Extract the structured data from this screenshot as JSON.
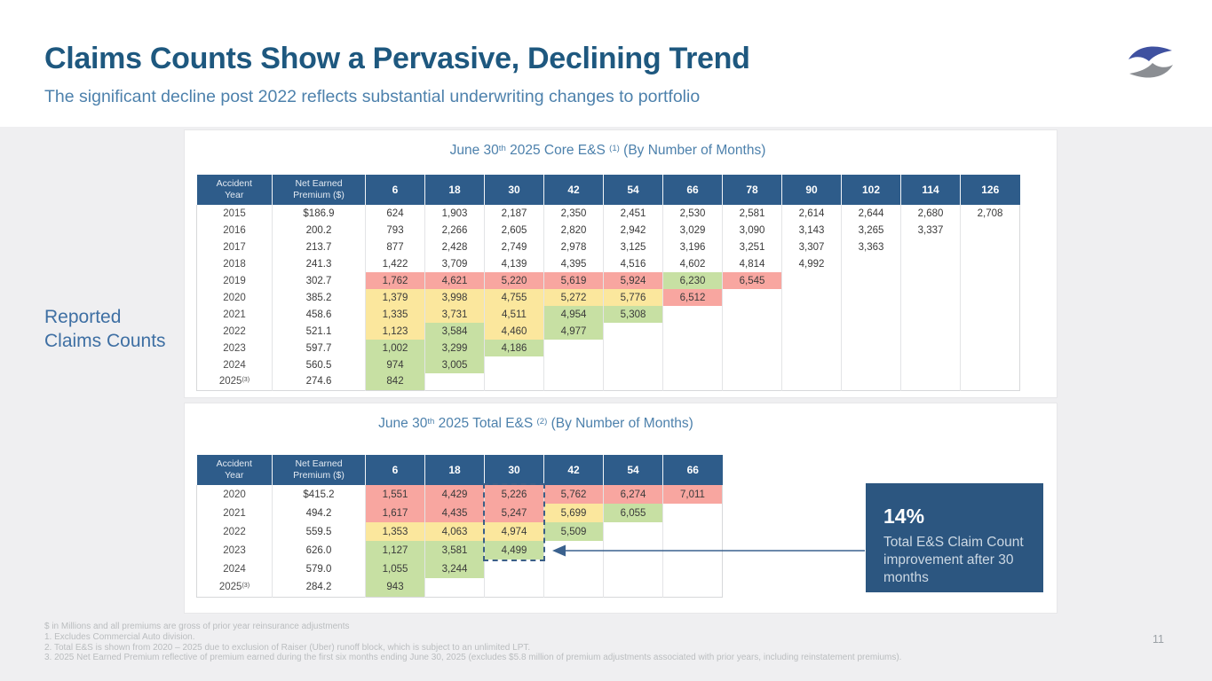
{
  "slide": {
    "title": "Claims Counts Show a Pervasive, Declining Trend",
    "subtitle": "The significant decline post 2022 reflects substantial underwriting changes to portfolio",
    "side_label_line1": "Reported",
    "side_label_line2": "Claims Counts",
    "page_number": "11"
  },
  "colors": {
    "header_navy": "#2e5c8a",
    "highlight_red": "#f8a6a0",
    "highlight_yellow": "#fbe79d",
    "highlight_green": "#c7e0a3",
    "callout_navy": "#2c5680",
    "title_blue": "#1e587f",
    "subtitle_blue": "#4d81ac",
    "logo_blue": "#3f51a0",
    "logo_gray": "#8b8e93"
  },
  "tables": [
    {
      "id": "table1",
      "title_id": "t1-title",
      "title": {
        "pre": "June 30",
        "sup1": "th",
        "mid": " 2025 Core E&S ",
        "sup2": "(1)",
        "post": " (By Number of Months)"
      },
      "header": {
        "col1": "Accident\nYear",
        "col2": "Net Earned\nPremium ($)"
      },
      "months": [
        "6",
        "18",
        "30",
        "42",
        "54",
        "66",
        "78",
        "90",
        "102",
        "114",
        "126"
      ],
      "rows": [
        {
          "year": "2015",
          "sup": "",
          "premium": "$186.9",
          "cells": [
            [
              "624",
              ""
            ],
            [
              "1,903",
              ""
            ],
            [
              "2,187",
              ""
            ],
            [
              "2,350",
              ""
            ],
            [
              "2,451",
              ""
            ],
            [
              "2,530",
              ""
            ],
            [
              "2,581",
              ""
            ],
            [
              "2,614",
              ""
            ],
            [
              "2,644",
              ""
            ],
            [
              "2,680",
              ""
            ],
            [
              "2,708",
              ""
            ]
          ]
        },
        {
          "year": "2016",
          "sup": "",
          "premium": "200.2",
          "cells": [
            [
              "793",
              ""
            ],
            [
              "2,266",
              ""
            ],
            [
              "2,605",
              ""
            ],
            [
              "2,820",
              ""
            ],
            [
              "2,942",
              ""
            ],
            [
              "3,029",
              ""
            ],
            [
              "3,090",
              ""
            ],
            [
              "3,143",
              ""
            ],
            [
              "3,265",
              ""
            ],
            [
              "3,337",
              ""
            ]
          ]
        },
        {
          "year": "2017",
          "sup": "",
          "premium": "213.7",
          "cells": [
            [
              "877",
              ""
            ],
            [
              "2,428",
              ""
            ],
            [
              "2,749",
              ""
            ],
            [
              "2,978",
              ""
            ],
            [
              "3,125",
              ""
            ],
            [
              "3,196",
              ""
            ],
            [
              "3,251",
              ""
            ],
            [
              "3,307",
              ""
            ],
            [
              "3,363",
              ""
            ]
          ]
        },
        {
          "year": "2018",
          "sup": "",
          "premium": "241.3",
          "cells": [
            [
              "1,422",
              ""
            ],
            [
              "3,709",
              ""
            ],
            [
              "4,139",
              ""
            ],
            [
              "4,395",
              ""
            ],
            [
              "4,516",
              ""
            ],
            [
              "4,602",
              ""
            ],
            [
              "4,814",
              ""
            ],
            [
              "4,992",
              ""
            ]
          ]
        },
        {
          "year": "2019",
          "sup": "",
          "premium": "302.7",
          "cells": [
            [
              "1,762",
              "r"
            ],
            [
              "4,621",
              "r"
            ],
            [
              "5,220",
              "r"
            ],
            [
              "5,619",
              "r"
            ],
            [
              "5,924",
              "r"
            ],
            [
              "6,230",
              "g"
            ],
            [
              "6,545",
              "r"
            ]
          ]
        },
        {
          "year": "2020",
          "sup": "",
          "premium": "385.2",
          "cells": [
            [
              "1,379",
              "y"
            ],
            [
              "3,998",
              "y"
            ],
            [
              "4,755",
              "y"
            ],
            [
              "5,272",
              "y"
            ],
            [
              "5,776",
              "y"
            ],
            [
              "6,512",
              "r"
            ]
          ]
        },
        {
          "year": "2021",
          "sup": "",
          "premium": "458.6",
          "cells": [
            [
              "1,335",
              "y"
            ],
            [
              "3,731",
              "y"
            ],
            [
              "4,511",
              "y"
            ],
            [
              "4,954",
              "g"
            ],
            [
              "5,308",
              "g"
            ]
          ]
        },
        {
          "year": "2022",
          "sup": "",
          "premium": "521.1",
          "cells": [
            [
              "1,123",
              "y"
            ],
            [
              "3,584",
              "g"
            ],
            [
              "4,460",
              "y"
            ],
            [
              "4,977",
              "g"
            ]
          ]
        },
        {
          "year": "2023",
          "sup": "",
          "premium": "597.7",
          "cells": [
            [
              "1,002",
              "g"
            ],
            [
              "3,299",
              "g"
            ],
            [
              "4,186",
              "g"
            ]
          ]
        },
        {
          "year": "2024",
          "sup": "",
          "premium": "560.5",
          "cells": [
            [
              "974",
              "g"
            ],
            [
              "3,005",
              "g"
            ]
          ]
        },
        {
          "year": "2025",
          "sup": "(3)",
          "premium": "274.6",
          "cells": [
            [
              "842",
              "g"
            ]
          ]
        }
      ]
    },
    {
      "id": "table2",
      "title_id": "t2-title",
      "title": {
        "pre": "June 30",
        "sup1": "th",
        "mid": " 2025 Total E&S ",
        "sup2": "(2)",
        "post": " (By Number of Months)"
      },
      "header": {
        "col1": "Accident\nYear",
        "col2": "Net Earned\nPremium ($)"
      },
      "months": [
        "6",
        "18",
        "30",
        "42",
        "54",
        "66"
      ],
      "rows": [
        {
          "year": "2020",
          "sup": "",
          "premium": "$415.2",
          "cells": [
            [
              "1,551",
              "r"
            ],
            [
              "4,429",
              "r"
            ],
            [
              "5,226",
              "r"
            ],
            [
              "5,762",
              "r"
            ],
            [
              "6,274",
              "r"
            ],
            [
              "7,011",
              "r"
            ]
          ]
        },
        {
          "year": "2021",
          "sup": "",
          "premium": "494.2",
          "cells": [
            [
              "1,617",
              "r"
            ],
            [
              "4,435",
              "r"
            ],
            [
              "5,247",
              "r"
            ],
            [
              "5,699",
              "y"
            ],
            [
              "6,055",
              "g"
            ]
          ]
        },
        {
          "year": "2022",
          "sup": "",
          "premium": "559.5",
          "cells": [
            [
              "1,353",
              "y"
            ],
            [
              "4,063",
              "y"
            ],
            [
              "4,974",
              "y"
            ],
            [
              "5,509",
              "g"
            ]
          ]
        },
        {
          "year": "2023",
          "sup": "",
          "premium": "626.0",
          "cells": [
            [
              "1,127",
              "g"
            ],
            [
              "3,581",
              "g"
            ],
            [
              "4,499",
              "g"
            ]
          ]
        },
        {
          "year": "2024",
          "sup": "",
          "premium": "579.0",
          "cells": [
            [
              "1,055",
              "g"
            ],
            [
              "3,244",
              "g"
            ]
          ]
        },
        {
          "year": "2025",
          "sup": "(3)",
          "premium": "284.2",
          "cells": [
            [
              "943",
              "g"
            ]
          ]
        }
      ]
    }
  ],
  "callout": {
    "value": "14%",
    "text": "Total E&S Claim Count improvement after 30 months"
  },
  "footnotes": [
    "$ in Millions and all premiums are gross of prior year reinsurance adjustments",
    "1.  Excludes Commercial Auto division.",
    "2.  Total E&S is shown from  2020 – 2025 due to exclusion of Raiser (Uber) runoff block, which is subject to an unlimited LPT.",
    "3.  2025 Net Earned Premium reflective of premium earned during the first six months ending June 30, 2025 (excludes $5.8 million of premium adjustments associated with prior years, including reinstatement premiums)."
  ]
}
